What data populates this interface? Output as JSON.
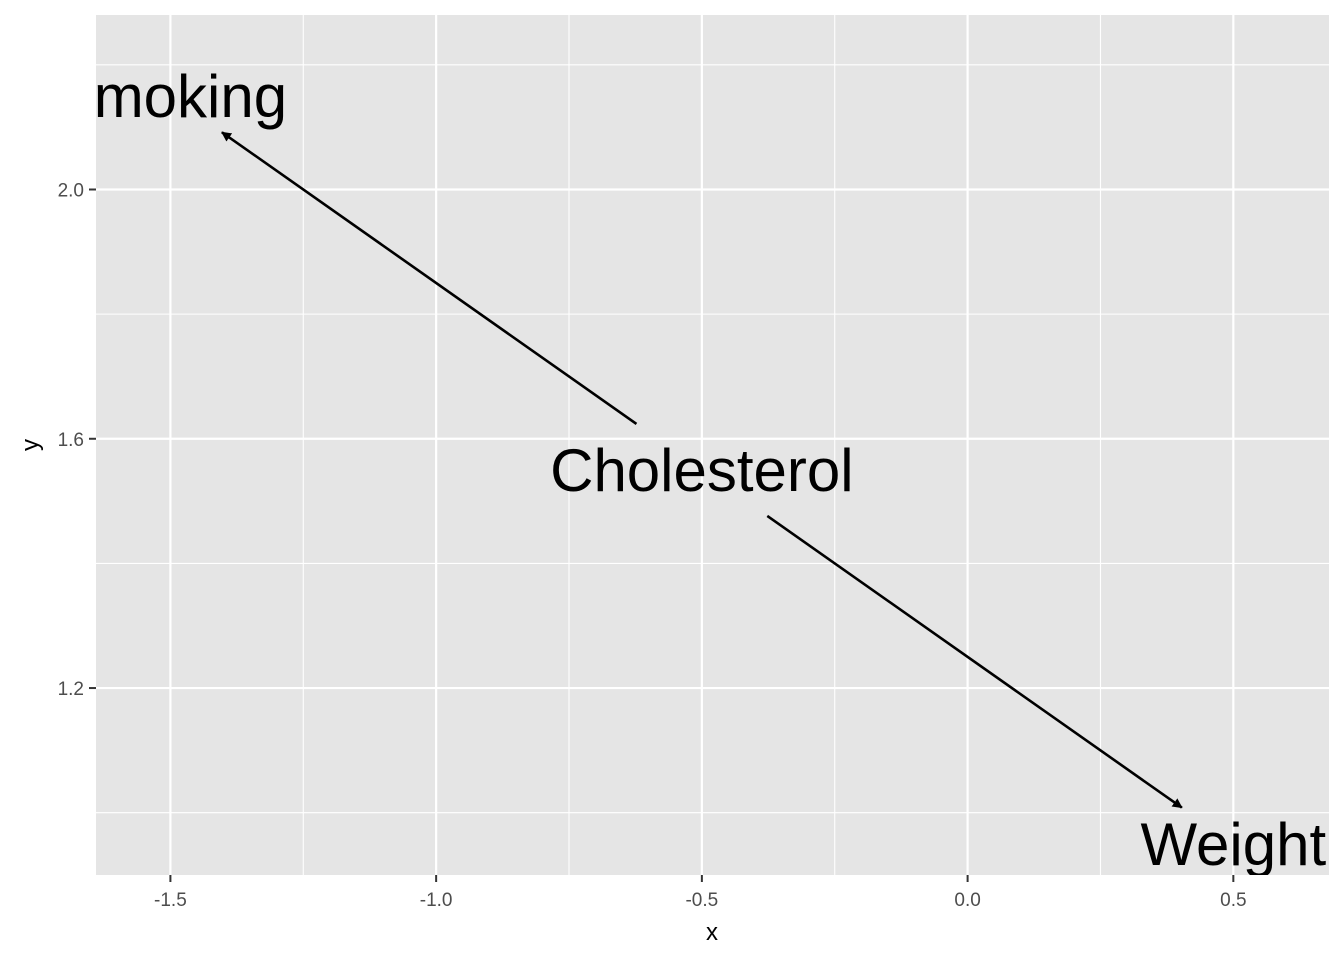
{
  "chart_data": {
    "type": "scatter",
    "title": "",
    "xlabel": "x",
    "ylabel": "y",
    "xlim": [
      -1.64,
      0.68
    ],
    "ylim": [
      0.9,
      2.28
    ],
    "x_ticks": [
      {
        "value": -1.5,
        "label": "-1.5"
      },
      {
        "value": -1.0,
        "label": "-1.0"
      },
      {
        "value": -0.5,
        "label": "-0.5"
      },
      {
        "value": 0.0,
        "label": "0.0"
      },
      {
        "value": 0.5,
        "label": "0.5"
      }
    ],
    "x_minor": [
      -1.25,
      -0.75,
      -0.25,
      0.25
    ],
    "y_ticks": [
      {
        "value": 1.2,
        "label": "1.2"
      },
      {
        "value": 1.6,
        "label": "1.6"
      },
      {
        "value": 2.0,
        "label": "2.0"
      }
    ],
    "y_minor": [
      1.0,
      1.4,
      1.8,
      2.2
    ],
    "grid": true,
    "nodes": [
      {
        "name": "Smoking",
        "x": -1.5,
        "y": 2.15
      },
      {
        "name": "Cholesterol",
        "x": -0.5,
        "y": 1.55
      },
      {
        "name": "Weight",
        "x": 0.5,
        "y": 0.95
      }
    ],
    "edges": [
      {
        "from": "Cholesterol",
        "to": "Smoking"
      },
      {
        "from": "Cholesterol",
        "to": "Weight"
      }
    ],
    "colors": {
      "panel": "#e5e5e5",
      "grid": "#ffffff",
      "tick": "#333333",
      "text": "#000000"
    }
  }
}
